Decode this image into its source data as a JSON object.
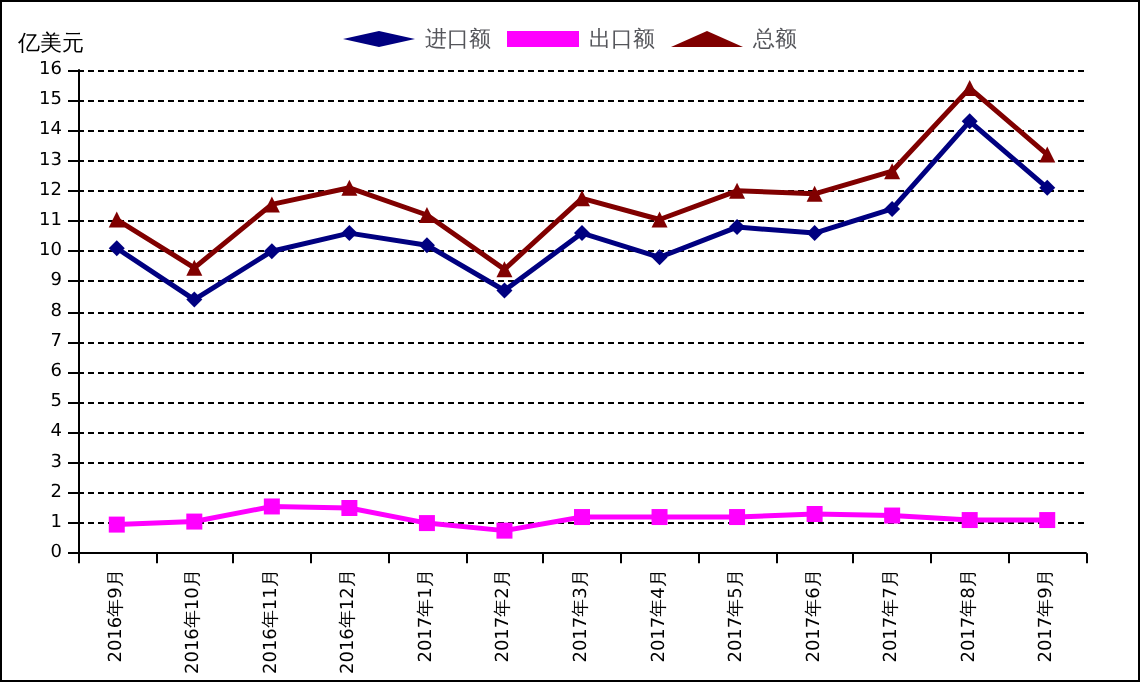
{
  "chart_data": {
    "type": "line",
    "ylabel": "亿美元",
    "categories": [
      "2016年9月",
      "2016年10月",
      "2016年11月",
      "2016年12月",
      "2017年1月",
      "2017年2月",
      "2017年3月",
      "2017年4月",
      "2017年5月",
      "2017年6月",
      "2017年7月",
      "2017年8月",
      "2017年9月"
    ],
    "series": [
      {
        "name": "进口额",
        "color": "#000080",
        "marker": "diamond",
        "values": [
          10.1,
          8.4,
          10.0,
          10.6,
          10.2,
          8.7,
          10.6,
          9.8,
          10.8,
          10.6,
          11.4,
          14.3,
          12.1
        ]
      },
      {
        "name": "出口额",
        "color": "#ff00ff",
        "marker": "square",
        "values": [
          0.95,
          1.05,
          1.55,
          1.5,
          1.0,
          0.75,
          1.2,
          1.2,
          1.2,
          1.3,
          1.25,
          1.1,
          1.1
        ]
      },
      {
        "name": "总额",
        "color": "#800000",
        "marker": "triangle",
        "values": [
          11.05,
          9.45,
          11.55,
          12.1,
          11.2,
          9.4,
          11.75,
          11.05,
          12.0,
          11.9,
          12.65,
          15.4,
          13.2
        ]
      }
    ],
    "ylim": [
      0,
      16
    ],
    "yticks": [
      0,
      1,
      2,
      3,
      4,
      5,
      6,
      7,
      8,
      9,
      10,
      11,
      12,
      13,
      14,
      15,
      16
    ],
    "grid": "y",
    "legend": "top",
    "line_style": "solid"
  }
}
